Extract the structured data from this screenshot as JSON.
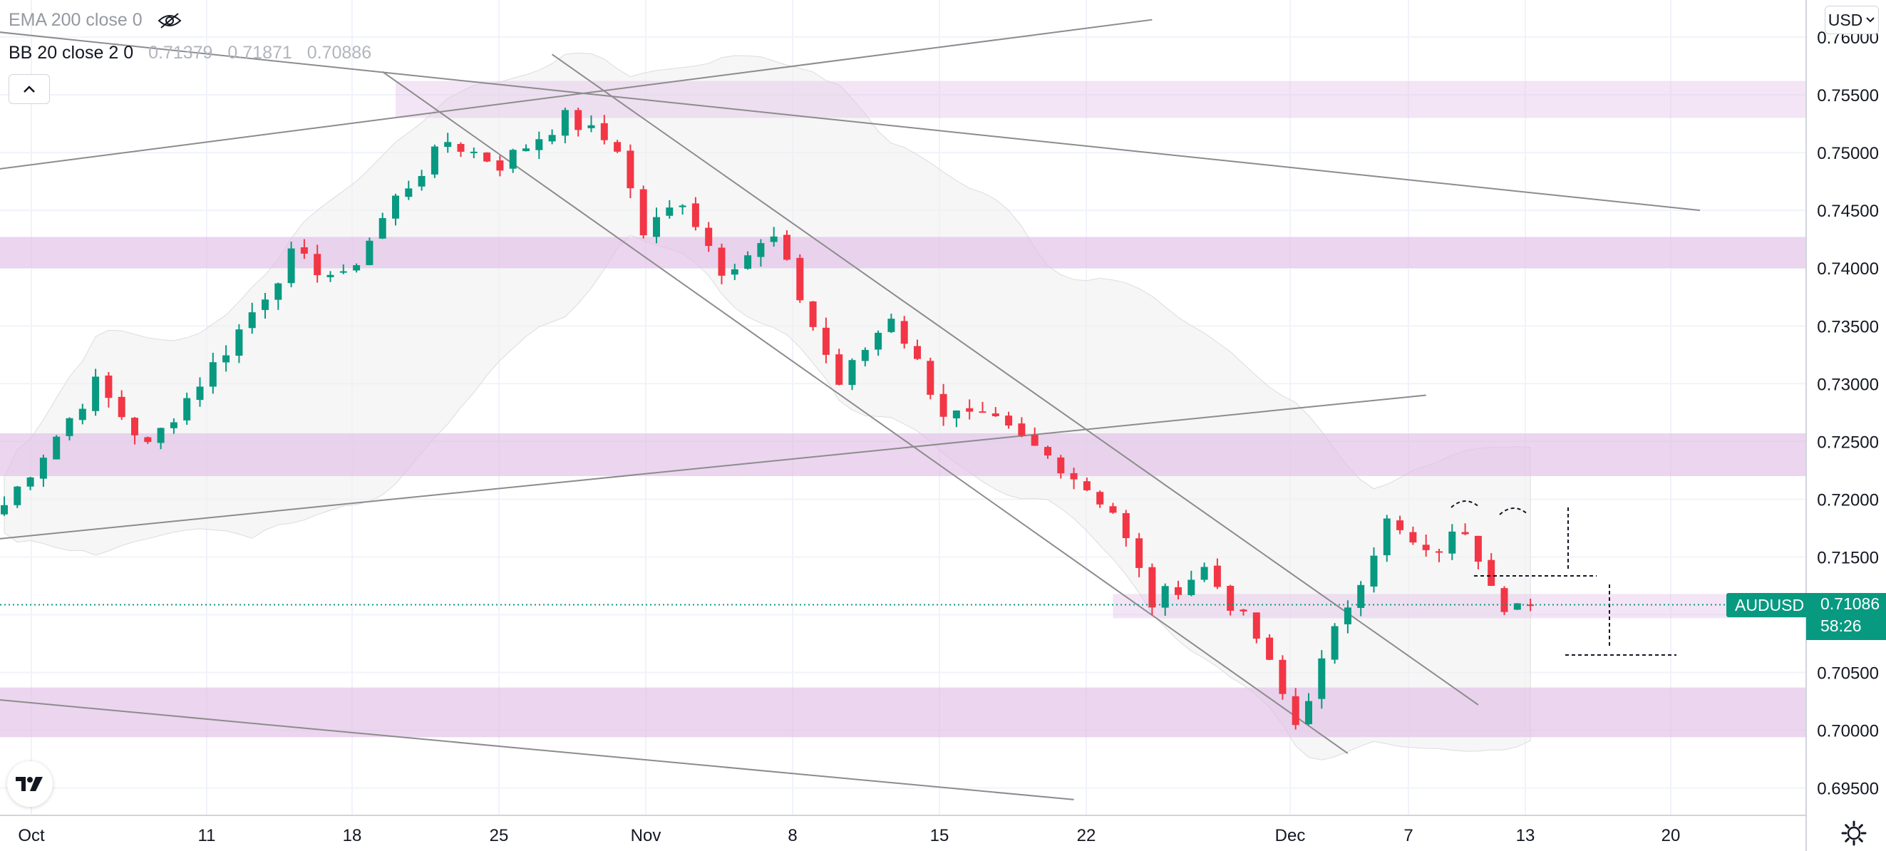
{
  "legend": {
    "ema": {
      "name": "EMA 200 close 0"
    },
    "bb": {
      "name": "BB 20 close 2 0",
      "values": [
        "0.71379",
        "0.71871",
        "0.70886"
      ]
    }
  },
  "currency": "USD",
  "symbol": "AUDUSD",
  "last_price": "0.71086",
  "countdown": "58:26",
  "icons": [
    "eye-hidden-icon",
    "chevron-up-icon",
    "chevron-down-icon",
    "tradingview-logo-icon",
    "settings-gear-icon"
  ],
  "colors": {
    "up": "#089981",
    "down": "#f23645",
    "zone": "#e1bee7",
    "band": "#eeeeee",
    "trendline": "#8c8c8c"
  },
  "chart_data": {
    "type": "candlestick",
    "symbol": "AUDUSD",
    "currency": "USD",
    "y_ticks": [
      "0.76000",
      "0.75500",
      "0.75000",
      "0.74500",
      "0.74000",
      "0.73500",
      "0.73000",
      "0.72500",
      "0.72000",
      "0.71500",
      "0.71000",
      "0.70500",
      "0.70000",
      "0.69500"
    ],
    "ylim": [
      0.6925,
      0.7618
    ],
    "x_ticks": [
      "Oct",
      "11",
      "18",
      "25",
      "Nov",
      "8",
      "15",
      "22",
      "Dec",
      "7",
      "13",
      "20"
    ],
    "last_price": 0.71086,
    "grid": true,
    "anchors": [
      {
        "bar": 0,
        "price": 0.7195
      },
      {
        "bar": 7,
        "price": 0.73
      },
      {
        "bar": 11,
        "price": 0.7245
      },
      {
        "bar": 17,
        "price": 0.733
      },
      {
        "bar": 22,
        "price": 0.741
      },
      {
        "bar": 26,
        "price": 0.739
      },
      {
        "bar": 30,
        "price": 0.746
      },
      {
        "bar": 34,
        "price": 0.751
      },
      {
        "bar": 38,
        "price": 0.749
      },
      {
        "bar": 43,
        "price": 0.753
      },
      {
        "bar": 47,
        "price": 0.7505
      },
      {
        "bar": 49,
        "price": 0.743
      },
      {
        "bar": 52,
        "price": 0.746
      },
      {
        "bar": 55,
        "price": 0.74
      },
      {
        "bar": 59,
        "price": 0.7425
      },
      {
        "bar": 64,
        "price": 0.73
      },
      {
        "bar": 68,
        "price": 0.736
      },
      {
        "bar": 72,
        "price": 0.7275
      },
      {
        "bar": 76,
        "price": 0.7265
      },
      {
        "bar": 81,
        "price": 0.723
      },
      {
        "bar": 85,
        "price": 0.719
      },
      {
        "bar": 88,
        "price": 0.711
      },
      {
        "bar": 92,
        "price": 0.714
      },
      {
        "bar": 96,
        "price": 0.708
      },
      {
        "bar": 99,
        "price": 0.7005
      },
      {
        "bar": 103,
        "price": 0.711
      },
      {
        "bar": 106,
        "price": 0.718
      },
      {
        "bar": 109,
        "price": 0.715
      },
      {
        "bar": 112,
        "price": 0.7175
      },
      {
        "bar": 115,
        "price": 0.711
      },
      {
        "bar": 117,
        "price": 0.71086
      }
    ],
    "zones": [
      {
        "from": 0.753,
        "to": 0.7562,
        "start_bar": 30
      },
      {
        "from": 0.74,
        "to": 0.7427
      },
      {
        "from": 0.722,
        "to": 0.7257
      },
      {
        "from": 0.7097,
        "to": 0.7118,
        "start_bar": 85
      },
      {
        "from": 0.6994,
        "to": 0.7037
      }
    ],
    "trendlines": [
      {
        "from": [
          -1,
          0.7165
        ],
        "to": [
          109,
          0.729
        ]
      },
      {
        "from": [
          -1,
          0.7605
        ],
        "to": [
          130,
          0.745
        ]
      },
      {
        "from": [
          -1,
          0.7485
        ],
        "to": [
          88,
          0.7615
        ]
      },
      {
        "from": [
          29,
          0.757
        ],
        "to": [
          103,
          0.698
        ]
      },
      {
        "from": [
          42,
          0.7585
        ],
        "to": [
          113,
          0.7022
        ]
      },
      {
        "from": [
          -1,
          0.7027
        ],
        "to": [
          82,
          0.694
        ]
      }
    ]
  }
}
